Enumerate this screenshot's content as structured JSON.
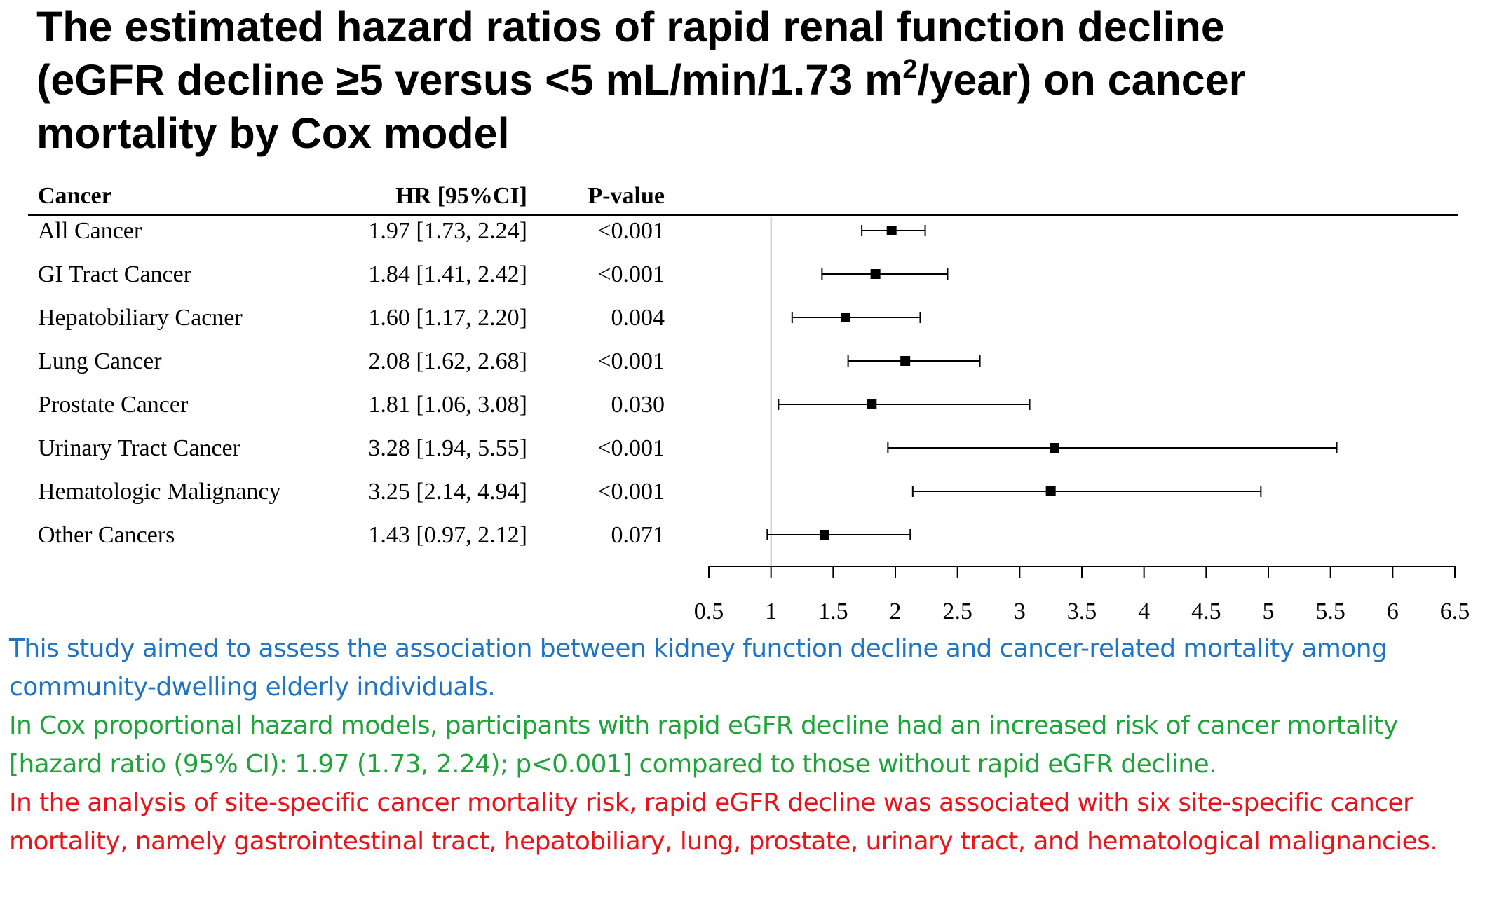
{
  "title": {
    "line1": "The estimated hazard ratios of rapid renal function decline",
    "line2_pre": "(eGFR decline ≥5 versus <5 mL/min/1.73 m",
    "line2_sup": "2",
    "line2_post": "/year) on cancer",
    "line3": "mortality by Cox model"
  },
  "chart_data": {
    "type": "forest",
    "columns": {
      "cancer": "Cancer",
      "hr_ci": "HR [95%CI]",
      "p_value": "P-value"
    },
    "rows": [
      {
        "label": "All Cancer",
        "hr_ci_text": "1.97 [1.73, 2.24]",
        "p": "<0.001",
        "hr": 1.97,
        "lower": 1.73,
        "upper": 2.24
      },
      {
        "label": "GI Tract Cancer",
        "hr_ci_text": "1.84 [1.41, 2.42]",
        "p": "<0.001",
        "hr": 1.84,
        "lower": 1.41,
        "upper": 2.42
      },
      {
        "label": "Hepatobiliary Cacner",
        "hr_ci_text": "1.60 [1.17, 2.20]",
        "p": "0.004",
        "hr": 1.6,
        "lower": 1.17,
        "upper": 2.2
      },
      {
        "label": "Lung Cancer",
        "hr_ci_text": "2.08 [1.62, 2.68]",
        "p": "<0.001",
        "hr": 2.08,
        "lower": 1.62,
        "upper": 2.68
      },
      {
        "label": "Prostate Cancer",
        "hr_ci_text": "1.81 [1.06, 3.08]",
        "p": "0.030",
        "hr": 1.81,
        "lower": 1.06,
        "upper": 3.08
      },
      {
        "label": "Urinary Tract Cancer",
        "hr_ci_text": "3.28 [1.94, 5.55]",
        "p": "<0.001",
        "hr": 3.28,
        "lower": 1.94,
        "upper": 5.55
      },
      {
        "label": "Hematologic Malignancy",
        "hr_ci_text": "3.25 [2.14, 4.94]",
        "p": "<0.001",
        "hr": 3.25,
        "lower": 2.14,
        "upper": 4.94
      },
      {
        "label": "Other Cancers",
        "hr_ci_text": "1.43 [0.97, 2.12]",
        "p": "0.071",
        "hr": 1.43,
        "lower": 0.97,
        "upper": 2.12
      }
    ],
    "x_ticks": [
      0.5,
      1,
      1.5,
      2,
      2.5,
      3,
      3.5,
      4,
      4.5,
      5,
      5.5,
      6,
      6.5
    ],
    "x_tick_labels": [
      "0.5",
      "1",
      "1.5",
      "2",
      "2.5",
      "3",
      "3.5",
      "4",
      "4.5",
      "5",
      "5.5",
      "6",
      "6.5"
    ],
    "xlim": [
      0.5,
      6.5
    ],
    "reference_line": 1
  },
  "findings": {
    "aim": "This study aimed to assess the association between kidney function decline and cancer-related mortality among community-dwelling elderly individuals.",
    "result": "In Cox proportional hazard models, participants with rapid eGFR decline had an increased risk of cancer mortality [hazard ratio (95% CI): 1.97 (1.73, 2.24); p<0.001] compared to those without rapid eGFR decline.",
    "site_specific": "In the analysis of site-specific cancer mortality risk, rapid eGFR decline was associated with six site-specific cancer mortality, namely gastrointestinal tract, hepatobiliary, lung, prostate, urinary tract, and hematological malignancies."
  },
  "colors": {
    "aim": "#1f74c4",
    "result": "#1fa33a",
    "site_specific": "#e8141a",
    "ink": "#000000",
    "reference_line": "#bdbdbd"
  }
}
